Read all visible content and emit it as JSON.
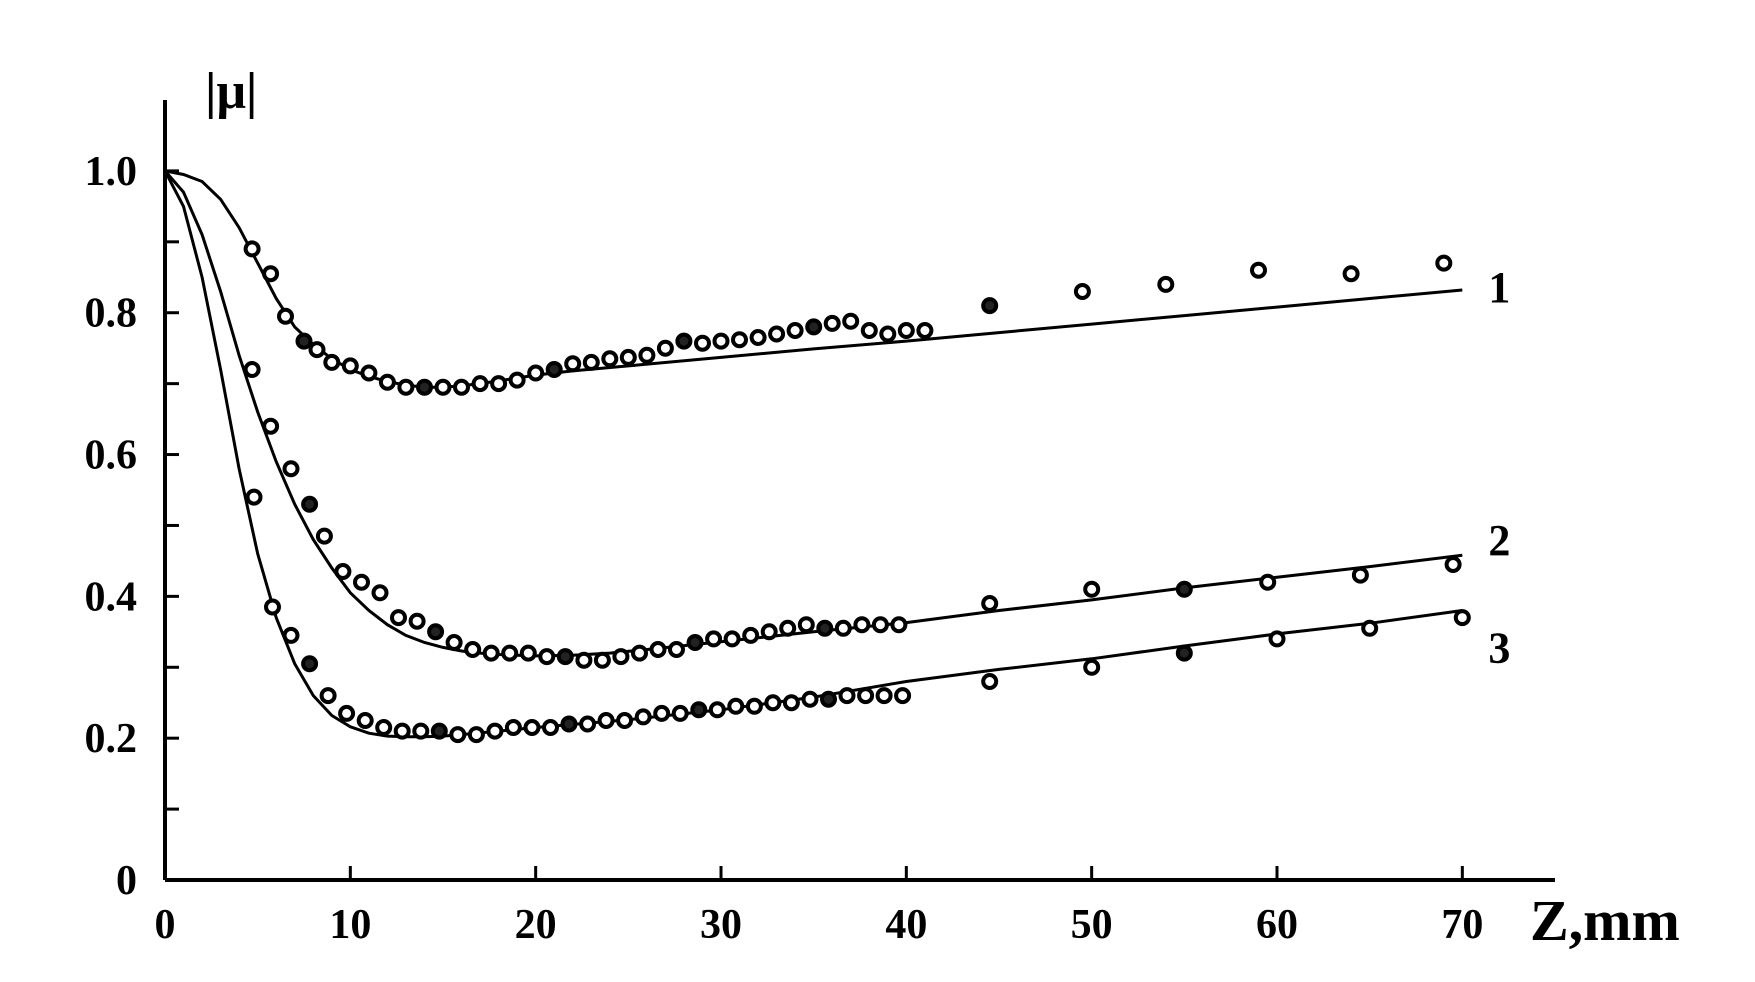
{
  "chart_data": {
    "type": "line",
    "ylabel": "|μ|",
    "xlabel": "Z,mm",
    "xlim": [
      0,
      75
    ],
    "ylim": [
      0,
      1.1
    ],
    "x_ticks": [
      0,
      10,
      20,
      30,
      40,
      50,
      60,
      70
    ],
    "y_ticks": [
      0,
      0.2,
      0.4,
      0.6,
      0.8,
      1.0
    ],
    "y_tick_labels": [
      "0",
      "0.2",
      "0.4",
      "0.6",
      "0.8",
      "1.0"
    ],
    "x_tick_labels": [
      "0",
      "10",
      "20",
      "30",
      "40",
      "50",
      "60",
      "70"
    ],
    "grid": false,
    "series": [
      {
        "name": "1",
        "fit": [
          [
            0,
            1.0
          ],
          [
            1,
            0.995
          ],
          [
            2,
            0.985
          ],
          [
            3,
            0.96
          ],
          [
            4,
            0.92
          ],
          [
            5,
            0.87
          ],
          [
            6,
            0.82
          ],
          [
            7,
            0.78
          ],
          [
            8,
            0.755
          ],
          [
            9,
            0.735
          ],
          [
            10,
            0.72
          ],
          [
            11,
            0.71
          ],
          [
            12,
            0.703
          ],
          [
            13,
            0.698
          ],
          [
            14,
            0.695
          ],
          [
            15,
            0.695
          ],
          [
            16,
            0.697
          ],
          [
            17,
            0.7
          ],
          [
            18,
            0.704
          ],
          [
            19,
            0.708
          ],
          [
            20,
            0.712
          ],
          [
            22,
            0.718
          ],
          [
            25,
            0.725
          ],
          [
            30,
            0.737
          ],
          [
            35,
            0.749
          ],
          [
            40,
            0.76
          ],
          [
            45,
            0.772
          ],
          [
            50,
            0.784
          ],
          [
            55,
            0.796
          ],
          [
            60,
            0.808
          ],
          [
            65,
            0.82
          ],
          [
            70,
            0.832
          ]
        ],
        "points": [
          [
            4.7,
            0.89
          ],
          [
            5.7,
            0.855
          ],
          [
            6.5,
            0.795
          ],
          [
            7.5,
            0.76
          ],
          [
            8.2,
            0.748
          ],
          [
            9,
            0.73
          ],
          [
            10,
            0.725
          ],
          [
            11,
            0.715
          ],
          [
            12,
            0.702
          ],
          [
            13,
            0.695
          ],
          [
            14,
            0.695
          ],
          [
            15,
            0.695
          ],
          [
            16,
            0.695
          ],
          [
            17,
            0.7
          ],
          [
            18,
            0.7
          ],
          [
            19,
            0.705
          ],
          [
            20,
            0.715
          ],
          [
            21,
            0.72
          ],
          [
            22,
            0.728
          ],
          [
            23,
            0.73
          ],
          [
            24,
            0.735
          ],
          [
            25,
            0.737
          ],
          [
            26,
            0.74
          ],
          [
            27,
            0.75
          ],
          [
            28,
            0.76
          ],
          [
            29,
            0.757
          ],
          [
            30,
            0.76
          ],
          [
            31,
            0.762
          ],
          [
            32,
            0.765
          ],
          [
            33,
            0.77
          ],
          [
            34,
            0.775
          ],
          [
            35,
            0.78
          ],
          [
            36,
            0.785
          ],
          [
            37,
            0.788
          ],
          [
            38,
            0.775
          ],
          [
            39,
            0.77
          ],
          [
            40,
            0.775
          ],
          [
            41,
            0.775
          ],
          [
            44.5,
            0.81
          ],
          [
            49.5,
            0.83
          ],
          [
            54,
            0.84
          ],
          [
            59,
            0.86
          ],
          [
            64,
            0.855
          ],
          [
            69,
            0.87
          ]
        ]
      },
      {
        "name": "2",
        "fit": [
          [
            0,
            1.0
          ],
          [
            1,
            0.97
          ],
          [
            2,
            0.91
          ],
          [
            3,
            0.83
          ],
          [
            4,
            0.74
          ],
          [
            5,
            0.66
          ],
          [
            6,
            0.59
          ],
          [
            7,
            0.53
          ],
          [
            8,
            0.48
          ],
          [
            9,
            0.44
          ],
          [
            10,
            0.405
          ],
          [
            11,
            0.38
          ],
          [
            12,
            0.36
          ],
          [
            13,
            0.345
          ],
          [
            14,
            0.335
          ],
          [
            15,
            0.328
          ],
          [
            16,
            0.323
          ],
          [
            17,
            0.32
          ],
          [
            18,
            0.318
          ],
          [
            19,
            0.317
          ],
          [
            20,
            0.316
          ],
          [
            22,
            0.317
          ],
          [
            24,
            0.32
          ],
          [
            26,
            0.325
          ],
          [
            30,
            0.336
          ],
          [
            35,
            0.35
          ],
          [
            40,
            0.363
          ],
          [
            45,
            0.38
          ],
          [
            50,
            0.395
          ],
          [
            55,
            0.412
          ],
          [
            60,
            0.427
          ],
          [
            65,
            0.442
          ],
          [
            70,
            0.458
          ]
        ],
        "points": [
          [
            4.7,
            0.72
          ],
          [
            5.7,
            0.64
          ],
          [
            6.8,
            0.58
          ],
          [
            7.8,
            0.53
          ],
          [
            8.6,
            0.485
          ],
          [
            9.6,
            0.435
          ],
          [
            10.6,
            0.42
          ],
          [
            11.6,
            0.405
          ],
          [
            12.6,
            0.37
          ],
          [
            13.6,
            0.365
          ],
          [
            14.6,
            0.35
          ],
          [
            15.6,
            0.335
          ],
          [
            16.6,
            0.325
          ],
          [
            17.6,
            0.32
          ],
          [
            18.6,
            0.32
          ],
          [
            19.6,
            0.32
          ],
          [
            20.6,
            0.315
          ],
          [
            21.6,
            0.315
          ],
          [
            22.6,
            0.31
          ],
          [
            23.6,
            0.31
          ],
          [
            24.6,
            0.315
          ],
          [
            25.6,
            0.32
          ],
          [
            26.6,
            0.325
          ],
          [
            27.6,
            0.325
          ],
          [
            28.6,
            0.335
          ],
          [
            29.6,
            0.34
          ],
          [
            30.6,
            0.34
          ],
          [
            31.6,
            0.345
          ],
          [
            32.6,
            0.35
          ],
          [
            33.6,
            0.355
          ],
          [
            34.6,
            0.36
          ],
          [
            35.6,
            0.355
          ],
          [
            36.6,
            0.355
          ],
          [
            37.6,
            0.36
          ],
          [
            38.6,
            0.36
          ],
          [
            39.6,
            0.36
          ],
          [
            44.5,
            0.39
          ],
          [
            50,
            0.41
          ],
          [
            55,
            0.41
          ],
          [
            59.5,
            0.42
          ],
          [
            64.5,
            0.43
          ],
          [
            69.5,
            0.445
          ]
        ]
      },
      {
        "name": "3",
        "fit": [
          [
            0,
            1.0
          ],
          [
            1,
            0.95
          ],
          [
            2,
            0.85
          ],
          [
            3,
            0.72
          ],
          [
            4,
            0.58
          ],
          [
            5,
            0.46
          ],
          [
            6,
            0.37
          ],
          [
            7,
            0.305
          ],
          [
            8,
            0.26
          ],
          [
            9,
            0.232
          ],
          [
            10,
            0.216
          ],
          [
            11,
            0.207
          ],
          [
            12,
            0.203
          ],
          [
            13,
            0.202
          ],
          [
            14,
            0.202
          ],
          [
            15,
            0.203
          ],
          [
            16,
            0.205
          ],
          [
            18,
            0.21
          ],
          [
            20,
            0.215
          ],
          [
            25,
            0.226
          ],
          [
            30,
            0.24
          ],
          [
            35,
            0.258
          ],
          [
            40,
            0.28
          ],
          [
            45,
            0.297
          ],
          [
            50,
            0.312
          ],
          [
            55,
            0.33
          ],
          [
            60,
            0.347
          ],
          [
            65,
            0.362
          ],
          [
            70,
            0.38
          ]
        ],
        "points": [
          [
            4.8,
            0.54
          ],
          [
            5.8,
            0.385
          ],
          [
            6.8,
            0.345
          ],
          [
            7.8,
            0.305
          ],
          [
            8.8,
            0.26
          ],
          [
            9.8,
            0.235
          ],
          [
            10.8,
            0.225
          ],
          [
            11.8,
            0.215
          ],
          [
            12.8,
            0.21
          ],
          [
            13.8,
            0.21
          ],
          [
            14.8,
            0.21
          ],
          [
            15.8,
            0.205
          ],
          [
            16.8,
            0.205
          ],
          [
            17.8,
            0.21
          ],
          [
            18.8,
            0.215
          ],
          [
            19.8,
            0.215
          ],
          [
            20.8,
            0.215
          ],
          [
            21.8,
            0.22
          ],
          [
            22.8,
            0.22
          ],
          [
            23.8,
            0.225
          ],
          [
            24.8,
            0.225
          ],
          [
            25.8,
            0.23
          ],
          [
            26.8,
            0.235
          ],
          [
            27.8,
            0.235
          ],
          [
            28.8,
            0.24
          ],
          [
            29.8,
            0.24
          ],
          [
            30.8,
            0.245
          ],
          [
            31.8,
            0.245
          ],
          [
            32.8,
            0.25
          ],
          [
            33.8,
            0.25
          ],
          [
            34.8,
            0.255
          ],
          [
            35.8,
            0.255
          ],
          [
            36.8,
            0.26
          ],
          [
            37.8,
            0.26
          ],
          [
            38.8,
            0.26
          ],
          [
            39.8,
            0.26
          ],
          [
            44.5,
            0.28
          ],
          [
            50,
            0.3
          ],
          [
            55,
            0.32
          ],
          [
            60,
            0.34
          ],
          [
            65,
            0.355
          ],
          [
            70,
            0.37
          ]
        ]
      }
    ],
    "axis_title_symbol": "μ"
  }
}
